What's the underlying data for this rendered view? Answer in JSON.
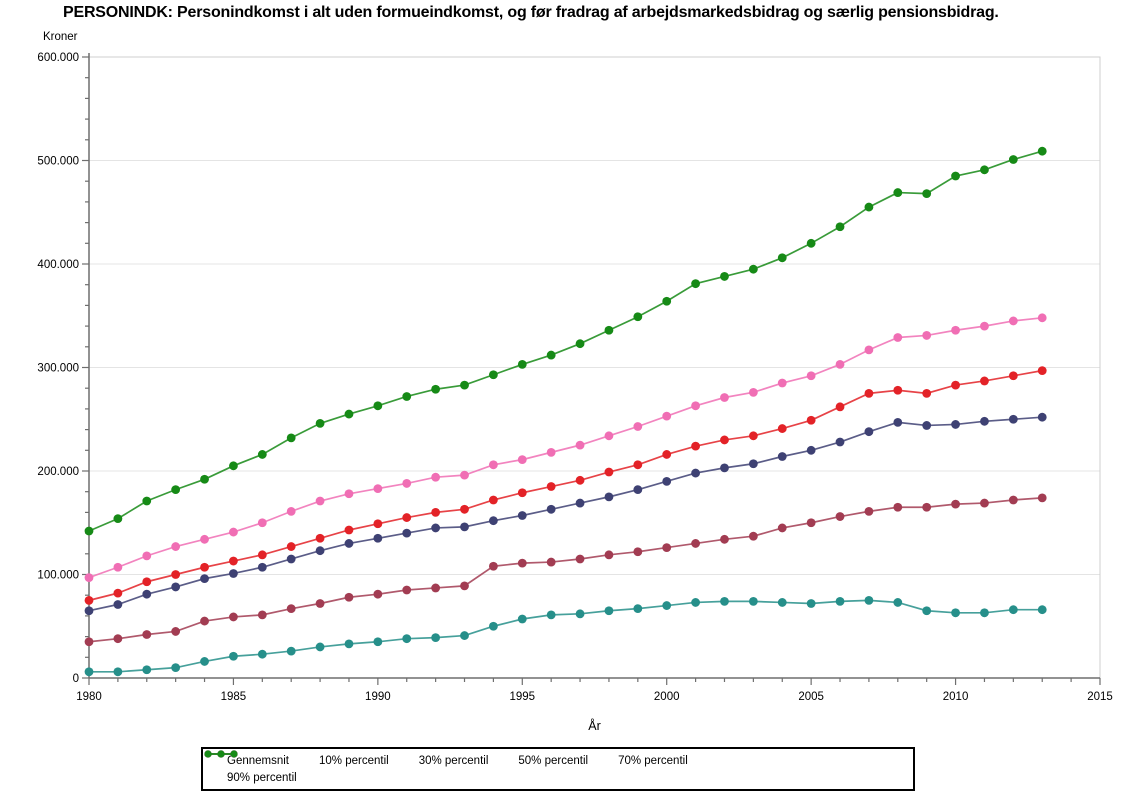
{
  "title": "PERSONINDK: Personindkomst i alt uden formueindkomst, og før fradrag af arbejdsmarkedsbidrag og særlig pensionsbidrag.",
  "chart_data": {
    "type": "line",
    "title": "PERSONINDK: Personindkomst i alt uden formueindkomst, og før fradrag af arbejdsmarkedsbidrag og særlig pensionsbidrag.",
    "xlabel": "År",
    "ylabel": "Kroner",
    "xlim": [
      1980,
      2015
    ],
    "ylim": [
      0,
      600000
    ],
    "grid": "horizontal",
    "legend_position": "bottom",
    "x_major_ticks": [
      1980,
      1985,
      1990,
      1995,
      2000,
      2005,
      2010,
      2015
    ],
    "x_minor_tick_step": 1,
    "y_major_ticks": [
      0,
      100000,
      200000,
      300000,
      400000,
      500000,
      600000
    ],
    "y_tick_labels": [
      "0",
      "100.000",
      "200.000",
      "300.000",
      "400.000",
      "500.000",
      "600.000"
    ],
    "y_minor_tick_step": 20000,
    "x": [
      1980,
      1981,
      1982,
      1983,
      1984,
      1985,
      1986,
      1987,
      1988,
      1989,
      1990,
      1991,
      1992,
      1993,
      1994,
      1995,
      1996,
      1997,
      1998,
      1999,
      2000,
      2001,
      2002,
      2003,
      2004,
      2005,
      2006,
      2007,
      2008,
      2009,
      2010,
      2011,
      2012,
      2013
    ],
    "series": [
      {
        "name": "Gennemsnit",
        "color": "#e32227",
        "values": [
          75000,
          82000,
          93000,
          100000,
          107000,
          113000,
          119000,
          127000,
          135000,
          143000,
          149000,
          155000,
          160000,
          163000,
          172000,
          179000,
          185000,
          191000,
          199000,
          206000,
          216000,
          224000,
          230000,
          234000,
          241000,
          249000,
          262000,
          275000,
          278000,
          275000,
          283000,
          287000,
          292000,
          297000
        ]
      },
      {
        "name": "10% percentil",
        "color": "#268f8a",
        "values": [
          6000,
          6000,
          8000,
          10000,
          16000,
          21000,
          23000,
          26000,
          30000,
          33000,
          35000,
          38000,
          39000,
          41000,
          50000,
          57000,
          61000,
          62000,
          65000,
          67000,
          70000,
          73000,
          74000,
          74000,
          73000,
          72000,
          74000,
          75000,
          73000,
          65000,
          63000,
          63000,
          66000,
          66000
        ]
      },
      {
        "name": "30% percentil",
        "color": "#a23c52",
        "values": [
          35000,
          38000,
          42000,
          45000,
          55000,
          59000,
          61000,
          67000,
          72000,
          78000,
          81000,
          85000,
          87000,
          89000,
          108000,
          111000,
          112000,
          115000,
          119000,
          122000,
          126000,
          130000,
          134000,
          137000,
          145000,
          150000,
          156000,
          161000,
          165000,
          165000,
          168000,
          169000,
          172000,
          174000
        ]
      },
      {
        "name": "50% percentil",
        "color": "#3e4173",
        "values": [
          65000,
          71000,
          81000,
          88000,
          96000,
          101000,
          107000,
          115000,
          123000,
          130000,
          135000,
          140000,
          145000,
          146000,
          152000,
          157000,
          163000,
          169000,
          175000,
          182000,
          190000,
          198000,
          203000,
          207000,
          214000,
          220000,
          228000,
          238000,
          247000,
          244000,
          245000,
          248000,
          250000,
          252000
        ]
      },
      {
        "name": "70% percentil",
        "color": "#f06eb4",
        "values": [
          97000,
          107000,
          118000,
          127000,
          134000,
          141000,
          150000,
          161000,
          171000,
          178000,
          183000,
          188000,
          194000,
          196000,
          206000,
          211000,
          218000,
          225000,
          234000,
          243000,
          253000,
          263000,
          271000,
          276000,
          285000,
          292000,
          303000,
          317000,
          329000,
          331000,
          336000,
          340000,
          345000,
          348000
        ]
      },
      {
        "name": "90% percentil",
        "color": "#168a16",
        "values": [
          142000,
          154000,
          171000,
          182000,
          192000,
          205000,
          216000,
          232000,
          246000,
          255000,
          263000,
          272000,
          279000,
          283000,
          293000,
          303000,
          312000,
          323000,
          336000,
          349000,
          364000,
          381000,
          388000,
          395000,
          406000,
          420000,
          436000,
          455000,
          469000,
          468000,
          485000,
          491000,
          501000,
          509000
        ]
      }
    ]
  }
}
